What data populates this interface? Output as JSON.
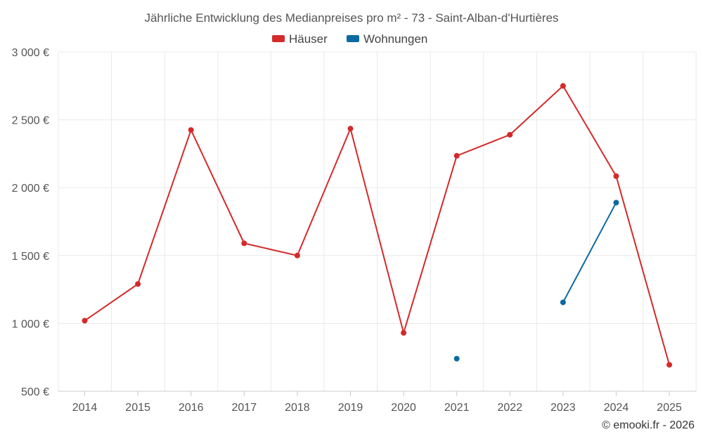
{
  "chart_data": {
    "type": "line",
    "title": "Jährliche Entwicklung des Medianpreises pro m² - 73 - Saint-Alban-d'Hurtières",
    "categories": [
      "2014",
      "2015",
      "2016",
      "2017",
      "2018",
      "2019",
      "2020",
      "2021",
      "2022",
      "2023",
      "2024",
      "2025"
    ],
    "series": [
      {
        "name": "Häuser",
        "color": "#d42a2a",
        "values": [
          1020,
          1290,
          2425,
          1590,
          1500,
          2435,
          930,
          2235,
          2390,
          2750,
          2085,
          695
        ]
      },
      {
        "name": "Wohnungen",
        "color": "#0a6aa1",
        "values": [
          null,
          null,
          null,
          null,
          null,
          null,
          null,
          740,
          null,
          1155,
          1890,
          null
        ]
      }
    ],
    "ylim": [
      500,
      3000
    ],
    "yticks": [
      500,
      1000,
      1500,
      2000,
      2500,
      3000
    ],
    "ytick_labels": [
      "500 €",
      "1 000 €",
      "1 500 €",
      "2 000 €",
      "2 500 €",
      "3 000 €"
    ],
    "grid": true,
    "legend_position": "top-center"
  },
  "credit": "© emooki.fr - 2026"
}
